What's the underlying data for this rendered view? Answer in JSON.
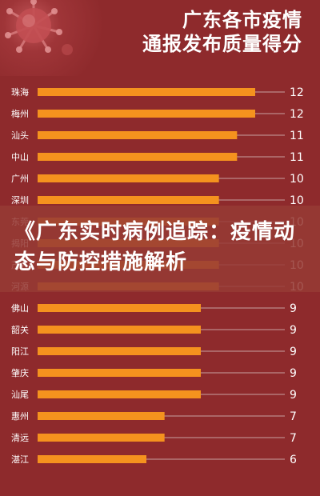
{
  "header": {
    "title_line1": "广东各市疫情",
    "title_line2": "通报发布质量得分"
  },
  "banner": {
    "text": "《广东实时病例追踪：疫情动态与防控措施解析"
  },
  "colors": {
    "background": "#8e2a2c",
    "bar": "#f5921e",
    "label": "#ffffff",
    "banner_overlay": "#963a34"
  },
  "chart_data": {
    "type": "bar",
    "orientation": "horizontal",
    "title": "广东各市疫情通报发布质量得分",
    "categories": [
      "珠海",
      "梅州",
      "汕头",
      "中山",
      "广州",
      "深圳",
      "东莞",
      "揭阳",
      "茂名",
      "河源",
      "佛山",
      "韶关",
      "阳江",
      "肇庆",
      "汕尾",
      "惠州",
      "清远",
      "湛江"
    ],
    "values": [
      12,
      12,
      11,
      11,
      10,
      10,
      10,
      10,
      10,
      10,
      9,
      9,
      9,
      9,
      9,
      7,
      7,
      6
    ],
    "xlim": [
      0,
      12
    ],
    "value_labels": true,
    "grid": false
  }
}
